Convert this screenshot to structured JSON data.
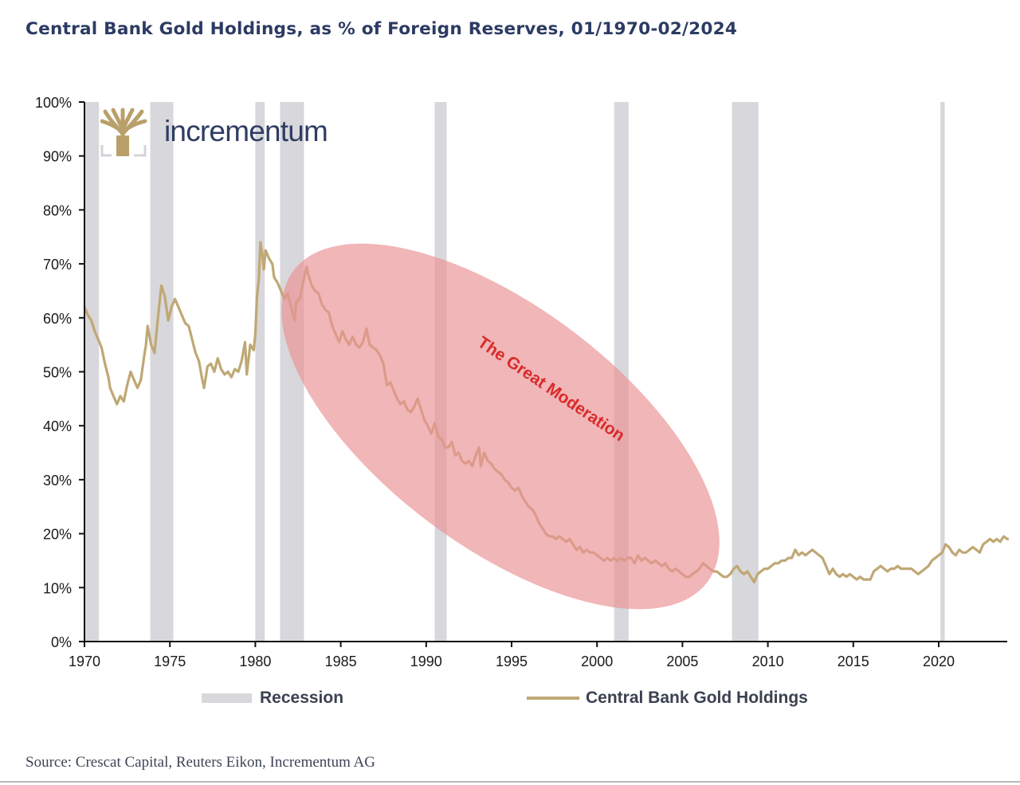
{
  "title": "Central Bank Gold Holdings, as % of Foreign Reserves, 01/1970-02/2024",
  "logo": {
    "text": "incrementum",
    "icon": "tree-icon",
    "color": "#b9a06a"
  },
  "source": "Source: Crescat Capital, Reuters Eikon, Incrementum AG",
  "colors": {
    "line": "#bfa874",
    "line_in_highlight": "#c8774f",
    "recession": "#d8d7db",
    "highlight": "#eb9495",
    "annotation": "#d92b2b",
    "title": "#2c3b63"
  },
  "chart_data": {
    "type": "line",
    "title": "Central Bank Gold Holdings, as % of Foreign Reserves, 01/1970-02/2024",
    "xlabel": "",
    "ylabel": "",
    "xlim": [
      1970,
      2024.2
    ],
    "ylim": [
      0,
      100
    ],
    "x_ticks": [
      1970,
      1975,
      1980,
      1985,
      1990,
      1995,
      2000,
      2005,
      2010,
      2015,
      2020
    ],
    "x_tick_labels": [
      "1970",
      "1975",
      "1980",
      "1985",
      "1990",
      "1995",
      "2000",
      "2005",
      "2010",
      "2015",
      "2020"
    ],
    "y_ticks": [
      0,
      10,
      20,
      30,
      40,
      50,
      60,
      70,
      80,
      90,
      100
    ],
    "y_tick_labels": [
      "0%",
      "10%",
      "20%",
      "30%",
      "40%",
      "50%",
      "60%",
      "70%",
      "80%",
      "90%",
      "100%"
    ],
    "grid": false,
    "legend": {
      "placement": "bottom",
      "entries": [
        {
          "label": "Recession",
          "type": "band"
        },
        {
          "label": "Central Bank Gold Holdings",
          "type": "line"
        }
      ]
    },
    "recessions": [
      [
        1970.0,
        1970.85
      ],
      [
        1973.85,
        1975.2
      ],
      [
        1980.0,
        1980.55
      ],
      [
        1981.45,
        1982.85
      ],
      [
        1990.5,
        1991.2
      ],
      [
        2001.0,
        2001.85
      ],
      [
        2007.9,
        2009.45
      ],
      [
        2020.1,
        2020.35
      ]
    ],
    "annotations": [
      {
        "text": "The Great Moderation",
        "type": "ellipse",
        "x_range": [
          1981,
          2008
        ],
        "y_range": [
          10,
          72
        ]
      }
    ],
    "series": [
      {
        "name": "Central Bank Gold Holdings",
        "points": [
          [
            1970.0,
            62
          ],
          [
            1970.2,
            60.5
          ],
          [
            1970.4,
            59.5
          ],
          [
            1970.6,
            57.5
          ],
          [
            1970.8,
            56
          ],
          [
            1971.0,
            54.5
          ],
          [
            1971.2,
            51.5
          ],
          [
            1971.4,
            49
          ],
          [
            1971.5,
            47
          ],
          [
            1971.7,
            45.5
          ],
          [
            1971.9,
            44
          ],
          [
            1972.1,
            45.5
          ],
          [
            1972.3,
            44.5
          ],
          [
            1972.5,
            47.5
          ],
          [
            1972.7,
            50
          ],
          [
            1972.9,
            48.5
          ],
          [
            1973.1,
            47
          ],
          [
            1973.3,
            48.5
          ],
          [
            1973.5,
            53
          ],
          [
            1973.6,
            55
          ],
          [
            1973.7,
            58.5
          ],
          [
            1973.9,
            55
          ],
          [
            1974.1,
            53.5
          ],
          [
            1974.3,
            60
          ],
          [
            1974.5,
            66
          ],
          [
            1974.7,
            64
          ],
          [
            1974.9,
            59.5
          ],
          [
            1975.1,
            62
          ],
          [
            1975.3,
            63.5
          ],
          [
            1975.5,
            62
          ],
          [
            1975.7,
            60.5
          ],
          [
            1975.9,
            59
          ],
          [
            1976.1,
            58.5
          ],
          [
            1976.3,
            56
          ],
          [
            1976.5,
            53.5
          ],
          [
            1976.7,
            52
          ],
          [
            1976.9,
            48.5
          ],
          [
            1977.0,
            47
          ],
          [
            1977.2,
            51
          ],
          [
            1977.4,
            51.5
          ],
          [
            1977.6,
            50
          ],
          [
            1977.8,
            52.5
          ],
          [
            1978.0,
            50.5
          ],
          [
            1978.2,
            49.5
          ],
          [
            1978.4,
            50
          ],
          [
            1978.6,
            49
          ],
          [
            1978.8,
            50.5
          ],
          [
            1979.0,
            50
          ],
          [
            1979.2,
            52
          ],
          [
            1979.4,
            55.5
          ],
          [
            1979.5,
            49.5
          ],
          [
            1979.7,
            55
          ],
          [
            1979.9,
            54
          ],
          [
            1980.0,
            57
          ],
          [
            1980.1,
            64
          ],
          [
            1980.2,
            67
          ],
          [
            1980.3,
            74
          ],
          [
            1980.4,
            72
          ],
          [
            1980.5,
            69
          ],
          [
            1980.6,
            72.5
          ],
          [
            1980.8,
            71
          ],
          [
            1981.0,
            70
          ],
          [
            1981.1,
            67.5
          ],
          [
            1981.3,
            66.5
          ],
          [
            1981.5,
            65
          ],
          [
            1981.7,
            63.5
          ],
          [
            1981.9,
            64.5
          ],
          [
            1982.1,
            62
          ],
          [
            1982.3,
            59.5
          ],
          [
            1982.4,
            63
          ],
          [
            1982.6,
            63.5
          ],
          [
            1982.8,
            66.5
          ],
          [
            1983.0,
            69.5
          ],
          [
            1983.1,
            68
          ],
          [
            1983.3,
            66
          ],
          [
            1983.5,
            65
          ],
          [
            1983.7,
            64.5
          ],
          [
            1983.9,
            62.5
          ],
          [
            1984.1,
            61.5
          ],
          [
            1984.3,
            61
          ],
          [
            1984.5,
            58.5
          ],
          [
            1984.7,
            57
          ],
          [
            1984.9,
            55.5
          ],
          [
            1985.1,
            57.5
          ],
          [
            1985.3,
            56
          ],
          [
            1985.5,
            55
          ],
          [
            1985.7,
            56.5
          ],
          [
            1985.9,
            55
          ],
          [
            1986.1,
            54.5
          ],
          [
            1986.3,
            55.5
          ],
          [
            1986.5,
            58
          ],
          [
            1986.7,
            55
          ],
          [
            1986.9,
            54.5
          ],
          [
            1987.1,
            54
          ],
          [
            1987.3,
            53
          ],
          [
            1987.5,
            51.5
          ],
          [
            1987.7,
            47.5
          ],
          [
            1987.9,
            48
          ],
          [
            1988.1,
            46.5
          ],
          [
            1988.3,
            45
          ],
          [
            1988.5,
            44
          ],
          [
            1988.7,
            44.5
          ],
          [
            1988.9,
            43
          ],
          [
            1989.1,
            42.5
          ],
          [
            1989.3,
            43.5
          ],
          [
            1989.5,
            45
          ],
          [
            1989.7,
            43
          ],
          [
            1989.9,
            41
          ],
          [
            1990.1,
            40
          ],
          [
            1990.3,
            38.5
          ],
          [
            1990.5,
            40.5
          ],
          [
            1990.7,
            38
          ],
          [
            1990.9,
            37.5
          ],
          [
            1991.1,
            36
          ],
          [
            1991.3,
            36
          ],
          [
            1991.5,
            37
          ],
          [
            1991.7,
            34.5
          ],
          [
            1991.9,
            35
          ],
          [
            1992.1,
            33.5
          ],
          [
            1992.3,
            33
          ],
          [
            1992.5,
            33.5
          ],
          [
            1992.7,
            32.5
          ],
          [
            1992.9,
            34.5
          ],
          [
            1993.1,
            36
          ],
          [
            1993.2,
            32.5
          ],
          [
            1993.4,
            35
          ],
          [
            1993.6,
            33.5
          ],
          [
            1993.8,
            33
          ],
          [
            1994.0,
            32
          ],
          [
            1994.2,
            31.5
          ],
          [
            1994.4,
            31
          ],
          [
            1994.6,
            30
          ],
          [
            1994.8,
            29.5
          ],
          [
            1995.0,
            28.5
          ],
          [
            1995.2,
            28
          ],
          [
            1995.4,
            28.5
          ],
          [
            1995.6,
            27
          ],
          [
            1995.8,
            26
          ],
          [
            1996.0,
            25
          ],
          [
            1996.2,
            24.5
          ],
          [
            1996.4,
            23.5
          ],
          [
            1996.6,
            22
          ],
          [
            1996.8,
            21
          ],
          [
            1997.0,
            20
          ],
          [
            1997.2,
            19.5
          ],
          [
            1997.4,
            19.5
          ],
          [
            1997.6,
            19
          ],
          [
            1997.8,
            19.5
          ],
          [
            1998.0,
            19
          ],
          [
            1998.2,
            18.5
          ],
          [
            1998.4,
            19
          ],
          [
            1998.6,
            18
          ],
          [
            1998.8,
            17
          ],
          [
            1999.0,
            17.5
          ],
          [
            1999.2,
            16.5
          ],
          [
            1999.4,
            17
          ],
          [
            1999.6,
            16.5
          ],
          [
            1999.8,
            16.5
          ],
          [
            2000.0,
            16
          ],
          [
            2000.2,
            15.5
          ],
          [
            2000.4,
            15
          ],
          [
            2000.6,
            15.5
          ],
          [
            2000.8,
            15
          ],
          [
            2001.0,
            15.5
          ],
          [
            2001.2,
            15
          ],
          [
            2001.4,
            15.5
          ],
          [
            2001.6,
            15
          ],
          [
            2001.8,
            15.5
          ],
          [
            2002.0,
            15.5
          ],
          [
            2002.2,
            14.5
          ],
          [
            2002.4,
            16
          ],
          [
            2002.6,
            15
          ],
          [
            2002.8,
            15.5
          ],
          [
            2003.0,
            15
          ],
          [
            2003.2,
            14.5
          ],
          [
            2003.4,
            15
          ],
          [
            2003.6,
            14.5
          ],
          [
            2003.8,
            14
          ],
          [
            2004.0,
            14.5
          ],
          [
            2004.2,
            13.5
          ],
          [
            2004.4,
            13
          ],
          [
            2004.6,
            13.5
          ],
          [
            2004.8,
            13
          ],
          [
            2005.0,
            12.5
          ],
          [
            2005.2,
            12
          ],
          [
            2005.4,
            12
          ],
          [
            2005.6,
            12.5
          ],
          [
            2005.8,
            13
          ],
          [
            2006.0,
            13.5
          ],
          [
            2006.2,
            14.5
          ],
          [
            2006.4,
            14
          ],
          [
            2006.6,
            13.5
          ],
          [
            2006.8,
            13
          ],
          [
            2007.0,
            13
          ],
          [
            2007.2,
            12.5
          ],
          [
            2007.4,
            12
          ],
          [
            2007.6,
            12
          ],
          [
            2007.8,
            12.5
          ],
          [
            2008.0,
            13.5
          ],
          [
            2008.2,
            14
          ],
          [
            2008.4,
            13
          ],
          [
            2008.6,
            12.5
          ],
          [
            2008.8,
            13
          ],
          [
            2009.0,
            12
          ],
          [
            2009.2,
            11
          ],
          [
            2009.4,
            12.5
          ],
          [
            2009.6,
            13
          ],
          [
            2009.8,
            13.5
          ],
          [
            2010.0,
            13.5
          ],
          [
            2010.2,
            14
          ],
          [
            2010.4,
            14.5
          ],
          [
            2010.6,
            14.5
          ],
          [
            2010.8,
            15
          ],
          [
            2011.0,
            15
          ],
          [
            2011.2,
            15.5
          ],
          [
            2011.4,
            15.5
          ],
          [
            2011.6,
            17
          ],
          [
            2011.8,
            16
          ],
          [
            2012.0,
            16.5
          ],
          [
            2012.2,
            16
          ],
          [
            2012.4,
            16.5
          ],
          [
            2012.6,
            17
          ],
          [
            2012.8,
            16.5
          ],
          [
            2013.0,
            16
          ],
          [
            2013.2,
            15.5
          ],
          [
            2013.4,
            14
          ],
          [
            2013.6,
            12.5
          ],
          [
            2013.8,
            13.5
          ],
          [
            2014.0,
            12.5
          ],
          [
            2014.2,
            12
          ],
          [
            2014.4,
            12.5
          ],
          [
            2014.6,
            12
          ],
          [
            2014.8,
            12.5
          ],
          [
            2015.0,
            12
          ],
          [
            2015.2,
            11.5
          ],
          [
            2015.4,
            12
          ],
          [
            2015.6,
            11.5
          ],
          [
            2015.8,
            11.5
          ],
          [
            2016.0,
            11.5
          ],
          [
            2016.2,
            13
          ],
          [
            2016.4,
            13.5
          ],
          [
            2016.6,
            14
          ],
          [
            2016.8,
            13.5
          ],
          [
            2017.0,
            13
          ],
          [
            2017.2,
            13.5
          ],
          [
            2017.4,
            13.5
          ],
          [
            2017.6,
            14
          ],
          [
            2017.8,
            13.5
          ],
          [
            2018.0,
            13.5
          ],
          [
            2018.2,
            13.5
          ],
          [
            2018.4,
            13.5
          ],
          [
            2018.6,
            13
          ],
          [
            2018.8,
            12.5
          ],
          [
            2019.0,
            13
          ],
          [
            2019.2,
            13.5
          ],
          [
            2019.4,
            14
          ],
          [
            2019.6,
            15
          ],
          [
            2019.8,
            15.5
          ],
          [
            2020.0,
            16
          ],
          [
            2020.2,
            16.5
          ],
          [
            2020.4,
            18
          ],
          [
            2020.6,
            17.5
          ],
          [
            2020.8,
            16.5
          ],
          [
            2021.0,
            16
          ],
          [
            2021.2,
            17
          ],
          [
            2021.4,
            16.5
          ],
          [
            2021.6,
            16.5
          ],
          [
            2021.8,
            17
          ],
          [
            2022.0,
            17.5
          ],
          [
            2022.2,
            17
          ],
          [
            2022.4,
            16.5
          ],
          [
            2022.6,
            18
          ],
          [
            2022.8,
            18.5
          ],
          [
            2023.0,
            19
          ],
          [
            2023.2,
            18.5
          ],
          [
            2023.4,
            19
          ],
          [
            2023.6,
            18.5
          ],
          [
            2023.8,
            19.5
          ],
          [
            2024.0,
            19
          ],
          [
            2024.1,
            19
          ]
        ]
      }
    ]
  }
}
